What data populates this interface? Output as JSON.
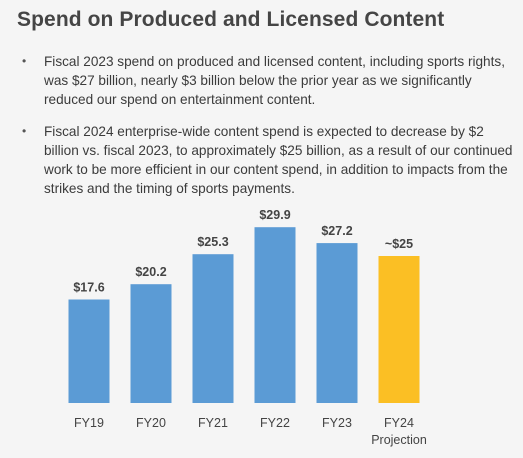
{
  "title": "Spend on Produced and Licensed Content",
  "bullets": [
    "Fiscal 2023 spend on produced and licensed content, including sports rights, was $27 billion, nearly $3 billion below the prior year as we significantly reduced our spend on entertainment content.",
    "Fiscal 2024 enterprise-wide content spend is expected to decrease by $2 billion vs. fiscal 2023, to approximately $25 billion, as a result of our continued work to be more efficient in our content spend, in addition to impacts from the strikes and the timing of sports payments."
  ],
  "colors": {
    "actual": "#5b9bd5",
    "projection": "#fbbf24",
    "background": "#f5f5f5"
  },
  "chart_data": {
    "type": "bar",
    "title": "",
    "xlabel": "",
    "ylabel": "",
    "ylim": [
      0,
      30
    ],
    "categories": [
      "FY19",
      "FY20",
      "FY21",
      "FY22",
      "FY23",
      "FY24\nProjection"
    ],
    "values": [
      17.6,
      20.2,
      25.3,
      29.9,
      27.2,
      25
    ],
    "labels": [
      "$17.6",
      "$20.2",
      "$25.3",
      "$29.9",
      "$27.2",
      "~$25"
    ],
    "bar_colors": [
      "#5b9bd5",
      "#5b9bd5",
      "#5b9bd5",
      "#5b9bd5",
      "#5b9bd5",
      "#fbbf24"
    ],
    "grid": false,
    "legend": "none"
  }
}
